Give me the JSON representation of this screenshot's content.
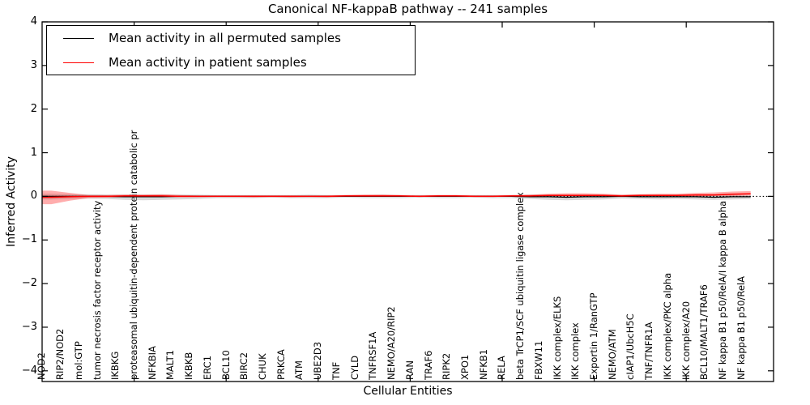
{
  "chart_data": {
    "type": "line",
    "title": "Canonical NF-kappaB pathway -- 241 samples",
    "sample_count": 241,
    "xlabel": "Cellular Entities",
    "ylabel": "Inferred Activity",
    "ylim": [
      -4,
      4
    ],
    "grid": false,
    "legend_position": "upper left",
    "ytick_labels": [
      "4",
      "3",
      "2",
      "1",
      "0",
      "−1",
      "−2",
      "−3",
      "−4"
    ],
    "ytick_values": [
      4,
      3,
      2,
      1,
      0,
      -1,
      -2,
      -3,
      -4
    ],
    "categories": [
      "NOD2",
      "RIP2/NOD2",
      "mol:GTP",
      "tumor necrosis factor receptor activity",
      "IKBKG",
      "proteasomal ubiquitin-dependent protein catabolic pr",
      "NFKBIA",
      "MALT1",
      "IKBKB",
      "ERC1",
      "BCL10",
      "BIRC2",
      "CHUK",
      "PRKCA",
      "ATM",
      "UBE2D3",
      "TNF",
      "CYLD",
      "TNFRSF1A",
      "NEMO/A20/RIP2",
      "RAN",
      "TRAF6",
      "RIPK2",
      "XPO1",
      "NFKB1",
      "RELA",
      "beta TrCP1/SCF ubiquitin ligase complex",
      "FBXW11",
      "IKK complex/ELKS",
      "IKK complex",
      "Exportin 1/RanGTP",
      "NEMO/ATM",
      "cIAP1/UbcH5C",
      "TNF/TNFR1A",
      "IKK complex/PKC alpha",
      "IKK complex/A20",
      "BCL10/MALT1/TRAF6",
      "NF kappa B1 p50/RelA/I kappa B alpha",
      "NF kappa B1 p50/RelA"
    ],
    "series": [
      {
        "name": "Mean activity in all permuted samples",
        "color": "#000000",
        "values": [
          0,
          0,
          0,
          0,
          -0.01,
          -0.01,
          -0.01,
          0,
          0,
          0,
          0,
          0,
          0,
          0,
          0,
          0,
          0,
          0,
          0,
          0,
          0,
          0,
          0,
          0,
          0,
          0,
          -0.01,
          -0.01,
          -0.02,
          -0.01,
          -0.01,
          0,
          -0.01,
          -0.01,
          -0.01,
          -0.01,
          -0.02,
          -0.01,
          -0.01
        ]
      },
      {
        "name": "Mean activity in patient samples",
        "color": "#ff0000",
        "values": [
          -0.02,
          -0.01,
          0,
          0,
          0.01,
          0.01,
          0.01,
          0,
          0,
          0,
          0,
          0,
          0,
          0,
          0,
          0,
          0.01,
          0.01,
          0.01,
          0.01,
          0,
          0.01,
          0.01,
          0,
          0,
          0.01,
          0.01,
          0.02,
          0.02,
          0.02,
          0.02,
          0.01,
          0.02,
          0.02,
          0.02,
          0.03,
          0.03,
          0.05,
          0.06
        ]
      }
    ],
    "bands": [
      {
        "name": "permuted-std-band",
        "color": "#aaaaaa",
        "opacity": 0.45,
        "upper": [
          0.06,
          0.05,
          0.05,
          0.04,
          0.04,
          0.04,
          0.04,
          0.04,
          0.04,
          0.03,
          0.03,
          0.03,
          0.03,
          0.03,
          0.04,
          0.03,
          0.03,
          0.03,
          0.04,
          0.03,
          0.03,
          0.03,
          0.03,
          0.03,
          0.03,
          0.03,
          0.04,
          0.04,
          0.04,
          0.04,
          0.04,
          0.03,
          0.04,
          0.04,
          0.04,
          0.04,
          0.04,
          0.04,
          0.03
        ],
        "lower": [
          -0.07,
          -0.06,
          -0.05,
          -0.06,
          -0.08,
          -0.09,
          -0.08,
          -0.07,
          -0.06,
          -0.04,
          -0.04,
          -0.04,
          -0.03,
          -0.04,
          -0.04,
          -0.04,
          -0.03,
          -0.04,
          -0.04,
          -0.04,
          -0.03,
          -0.04,
          -0.04,
          -0.03,
          -0.04,
          -0.04,
          -0.06,
          -0.08,
          -0.09,
          -0.08,
          -0.07,
          -0.05,
          -0.06,
          -0.07,
          -0.06,
          -0.07,
          -0.08,
          -0.07,
          -0.06
        ]
      },
      {
        "name": "patient-std-band",
        "color": "#ff0000",
        "opacity": 0.32,
        "upper": [
          0.13,
          0.08,
          0.03,
          0.03,
          0.04,
          0.04,
          0.05,
          0.03,
          0.02,
          0.02,
          0.02,
          0.02,
          0.02,
          0.02,
          0.02,
          0.02,
          0.03,
          0.04,
          0.04,
          0.03,
          0.02,
          0.03,
          0.03,
          0.02,
          0.02,
          0.03,
          0.04,
          0.06,
          0.07,
          0.07,
          0.06,
          0.04,
          0.05,
          0.06,
          0.06,
          0.08,
          0.09,
          0.11,
          0.12
        ],
        "lower": [
          -0.18,
          -0.1,
          -0.04,
          -0.03,
          -0.02,
          -0.02,
          -0.02,
          -0.02,
          -0.02,
          -0.01,
          -0.01,
          -0.02,
          -0.01,
          -0.02,
          -0.01,
          -0.02,
          -0.01,
          -0.01,
          -0.01,
          -0.01,
          -0.01,
          -0.01,
          -0.01,
          -0.01,
          -0.01,
          -0.01,
          -0.01,
          0,
          0,
          0,
          0,
          -0.01,
          0,
          0,
          0,
          0,
          0.01,
          0.01,
          0.02
        ]
      }
    ],
    "zero_line": true
  },
  "legend": {
    "entries": [
      {
        "label": "Mean activity in all permuted samples",
        "color": "#000000"
      },
      {
        "label": "Mean activity in patient samples",
        "color": "#ff0000"
      }
    ]
  }
}
